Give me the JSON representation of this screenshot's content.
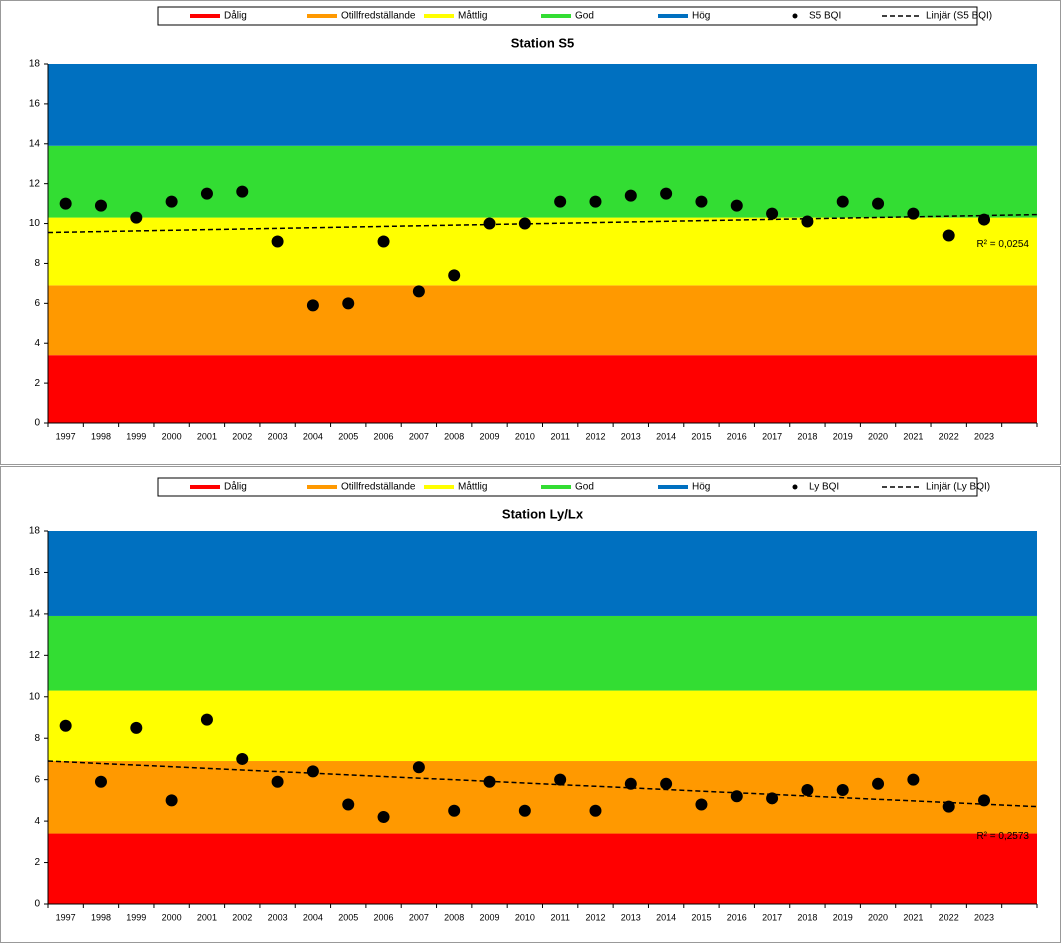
{
  "chart_data": [
    {
      "type": "scatter",
      "title": "Station S5",
      "categories": [
        "1997",
        "1998",
        "1999",
        "2000",
        "2001",
        "2002",
        "2003",
        "2004",
        "2005",
        "2006",
        "2007",
        "2008",
        "2009",
        "2010",
        "2011",
        "2012",
        "2013",
        "2014",
        "2015",
        "2016",
        "2017",
        "2018",
        "2019",
        "2020",
        "2021",
        "2022",
        "2023",
        null
      ],
      "series": [
        {
          "name": "S5 BQI",
          "color": "#000000",
          "values": [
            11.0,
            10.9,
            10.3,
            11.1,
            11.5,
            11.6,
            9.1,
            5.9,
            6.0,
            9.1,
            6.6,
            7.4,
            10.0,
            10.0,
            11.1,
            11.1,
            11.4,
            11.5,
            11.1,
            10.9,
            10.5,
            10.1,
            11.1,
            11.0,
            10.5,
            9.4,
            10.2,
            null
          ]
        }
      ],
      "bands": [
        {
          "name": "Dålig",
          "color": "#ff0000",
          "from": 0,
          "to": 3.4
        },
        {
          "name": "Otillfredställande",
          "color": "#ff9900",
          "from": 3.4,
          "to": 6.9
        },
        {
          "name": "Måttlig",
          "color": "#ffff00",
          "from": 6.9,
          "to": 10.3
        },
        {
          "name": "God",
          "color": "#33dd33",
          "from": 10.3,
          "to": 13.9
        },
        {
          "name": "Hög",
          "color": "#0070c0",
          "from": 13.9,
          "to": 18
        }
      ],
      "trendline": {
        "name": "Linjär (S5 BQI)",
        "values": [
          9.55,
          10.45
        ]
      },
      "annotation": "R² = 0,0254",
      "ylim": [
        0,
        18
      ],
      "yticks": [
        0,
        2,
        4,
        6,
        8,
        10,
        12,
        14,
        16,
        18
      ]
    },
    {
      "type": "scatter",
      "title": "Station Ly/Lx",
      "categories": [
        "1997",
        "1998",
        "1999",
        "2000",
        "2001",
        "2002",
        "2003",
        "2004",
        "2005",
        "2006",
        "2007",
        "2008",
        "2009",
        "2010",
        "2011",
        "2012",
        "2013",
        "2014",
        "2015",
        "2016",
        "2017",
        "2018",
        "2019",
        "2020",
        "2021",
        "2022",
        "2023",
        null
      ],
      "series": [
        {
          "name": "Ly BQI",
          "color": "#000000",
          "values": [
            8.6,
            5.9,
            8.5,
            5.0,
            8.9,
            7.0,
            5.9,
            6.4,
            4.8,
            4.2,
            6.6,
            4.5,
            5.9,
            4.5,
            6.0,
            4.5,
            5.8,
            5.8,
            4.8,
            5.2,
            5.1,
            5.5,
            5.5,
            5.8,
            6.0,
            4.7,
            5.0,
            null
          ]
        }
      ],
      "bands": [
        {
          "name": "Dålig",
          "color": "#ff0000",
          "from": 0,
          "to": 3.4
        },
        {
          "name": "Otillfredställande",
          "color": "#ff9900",
          "from": 3.4,
          "to": 6.9
        },
        {
          "name": "Måttlig",
          "color": "#ffff00",
          "from": 6.9,
          "to": 10.3
        },
        {
          "name": "God",
          "color": "#33dd33",
          "from": 10.3,
          "to": 13.9
        },
        {
          "name": "Hög",
          "color": "#0070c0",
          "from": 13.9,
          "to": 18
        }
      ],
      "trendline": {
        "name": "Linjär (Ly BQI)",
        "values": [
          6.9,
          4.7
        ]
      },
      "annotation": "R² = 0,2573",
      "ylim": [
        0,
        18
      ],
      "yticks": [
        0,
        2,
        4,
        6,
        8,
        10,
        12,
        14,
        16,
        18
      ]
    }
  ]
}
